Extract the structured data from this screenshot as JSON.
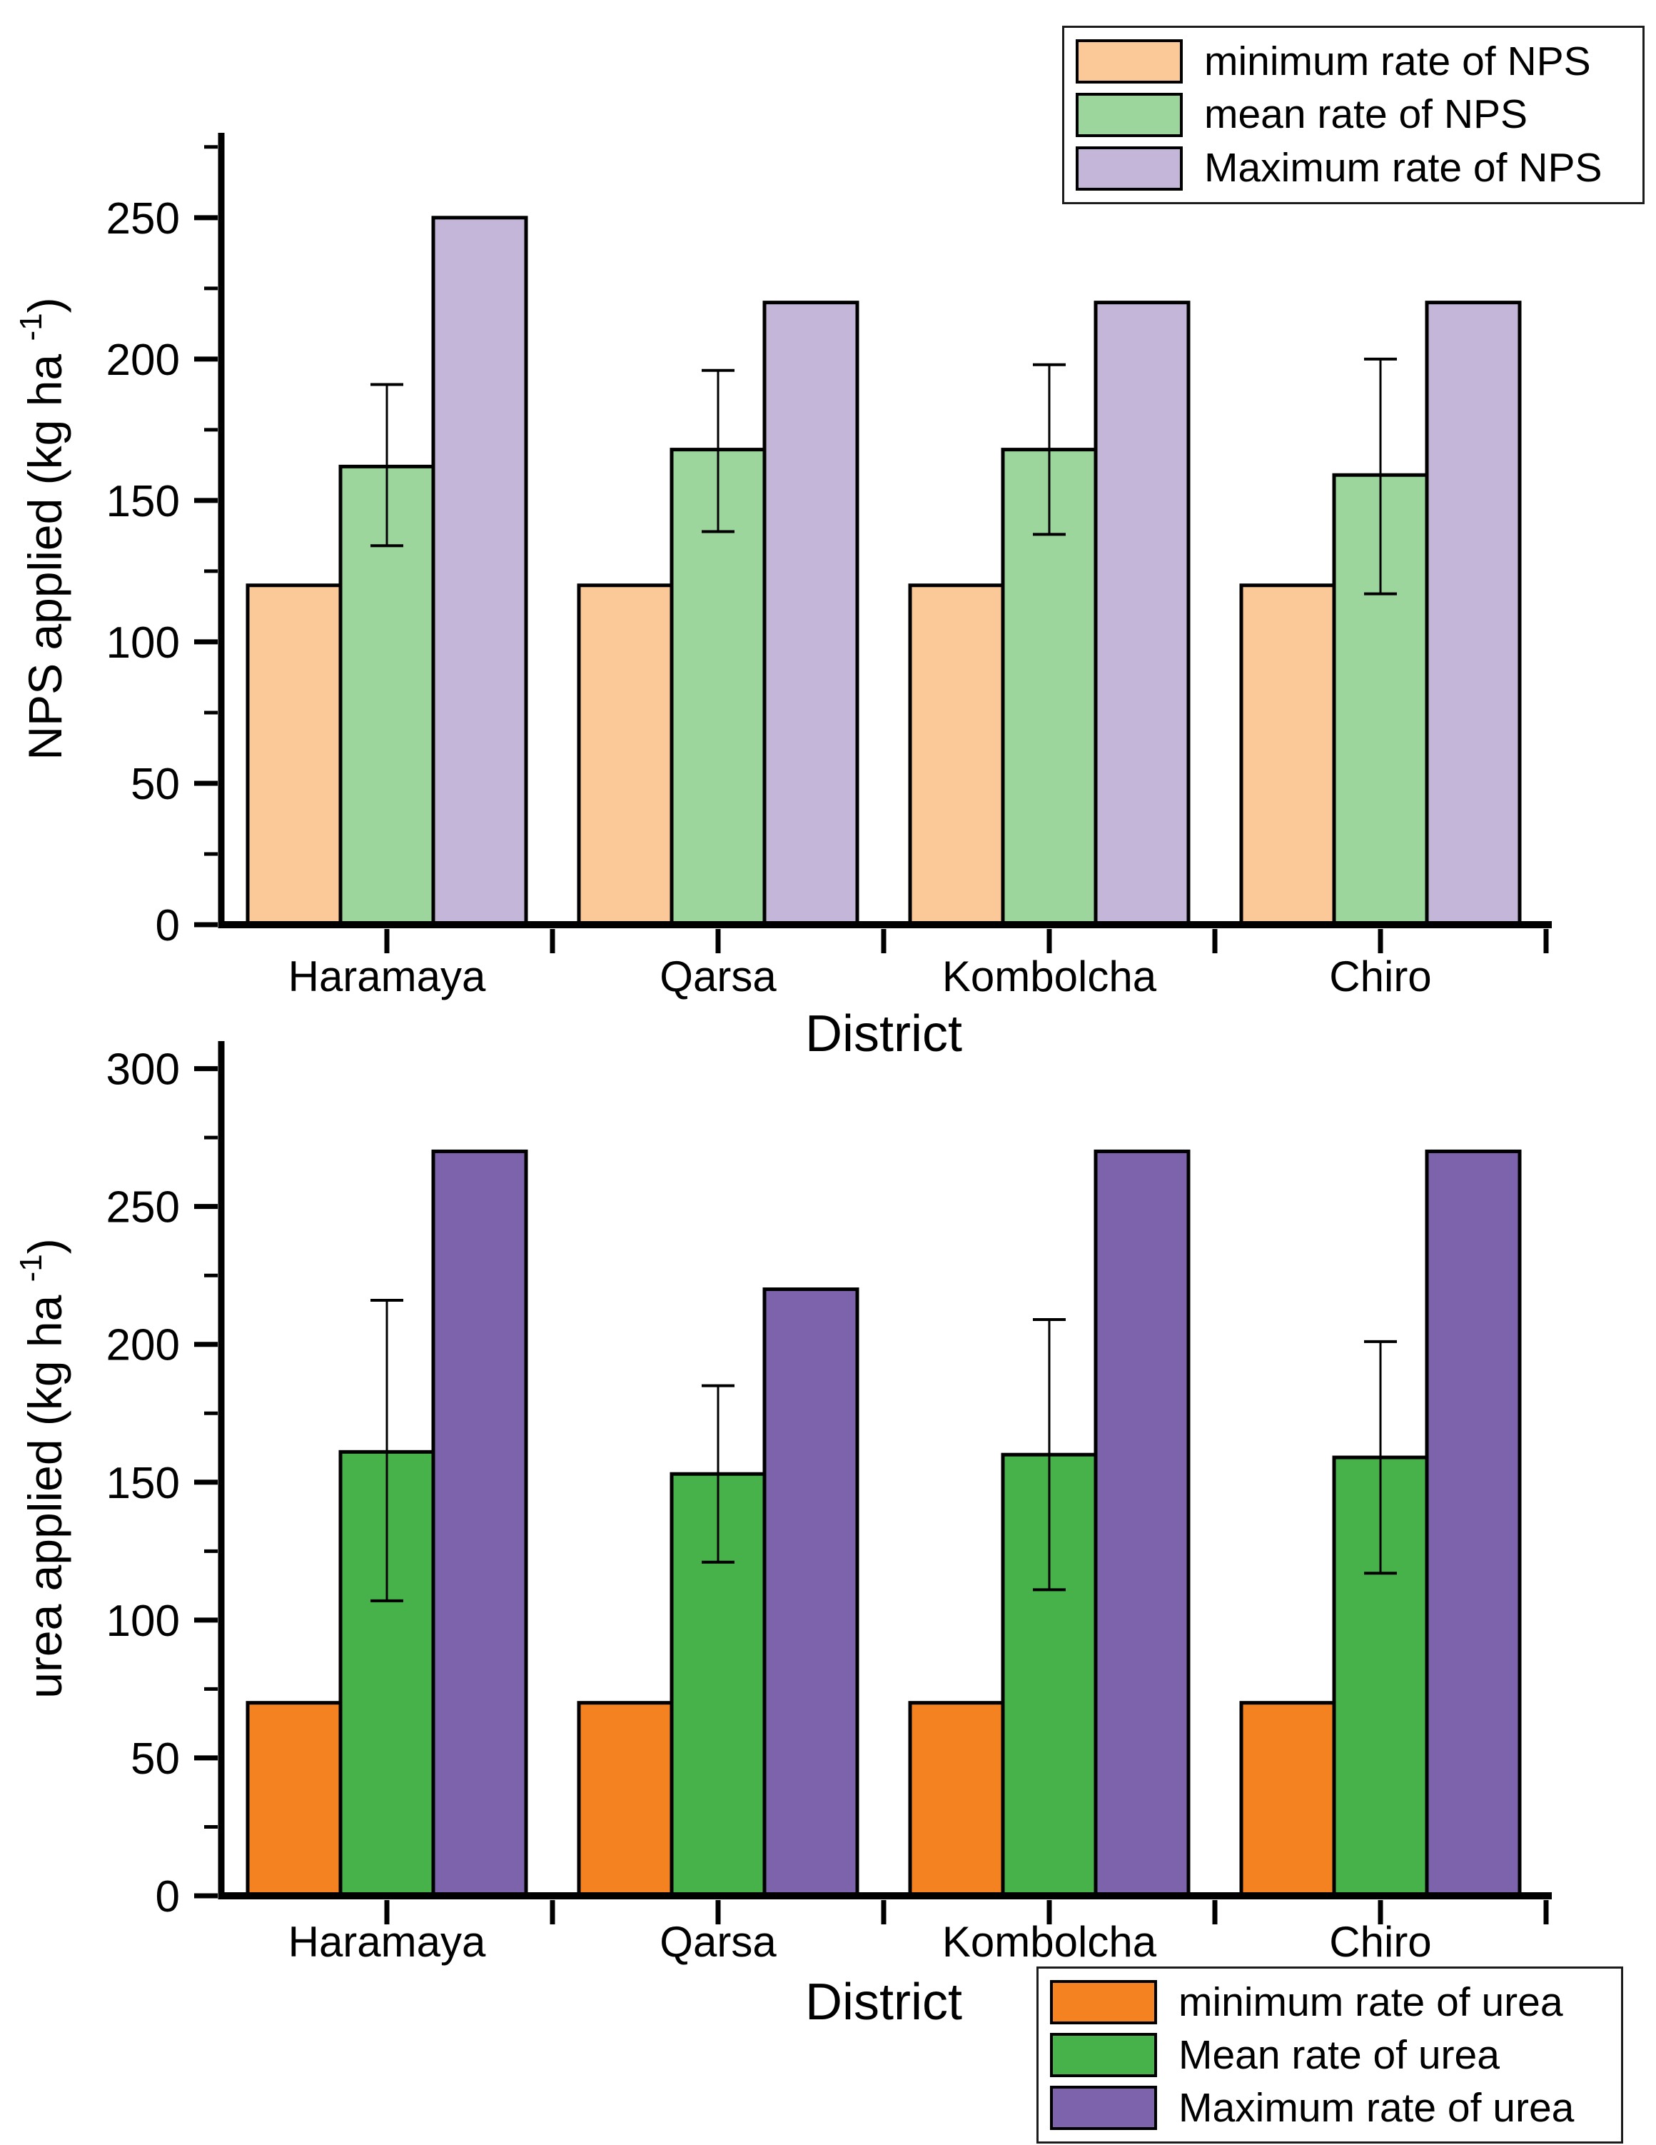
{
  "page": {
    "background": "#ffffff"
  },
  "chart_data": [
    {
      "type": "bar",
      "title": "",
      "categories": [
        "Haramaya",
        "Qarsa",
        "Kombolcha",
        "Chiro"
      ],
      "series": [
        {
          "name": "minimum rate of NPS",
          "color": "#FBC998",
          "values": [
            120,
            120,
            120,
            120
          ]
        },
        {
          "name": "mean rate of NPS",
          "color": "#9CD69C",
          "values": [
            162,
            168,
            168,
            159
          ],
          "error_low": [
            134,
            139,
            138,
            117
          ],
          "error_high": [
            191,
            196,
            198,
            200
          ]
        },
        {
          "name": "Maximum rate of NPS",
          "color": "#C4B6D8",
          "values": [
            250,
            220,
            220,
            220
          ]
        }
      ],
      "xlabel": "District",
      "ylabel": "NPS applied (kg ha -1)",
      "ylabel_parts": {
        "main": "NPS applied (kg ha ",
        "sup": "-1",
        "end": ")"
      },
      "ylim": [
        0,
        280
      ],
      "yticks": [
        0,
        50,
        100,
        150,
        200,
        250
      ],
      "minor_tick_step": 25,
      "grid": false,
      "legend_position": "top-right",
      "bar_edge_color": "#000000"
    },
    {
      "type": "bar",
      "title": "",
      "categories": [
        "Haramaya",
        "Qarsa",
        "Kombolcha",
        "Chiro"
      ],
      "series": [
        {
          "name": "minimum rate of urea",
          "color": "#F58220",
          "values": [
            70,
            70,
            70,
            70
          ]
        },
        {
          "name": "Mean rate of urea",
          "color": "#47B24A",
          "values": [
            161,
            153,
            160,
            159
          ],
          "error_low": [
            107,
            121,
            111,
            117
          ],
          "error_high": [
            216,
            185,
            209,
            201
          ]
        },
        {
          "name": "Maximum rate of urea",
          "color": "#7C63AC",
          "values": [
            270,
            220,
            270,
            270
          ]
        }
      ],
      "xlabel": "District",
      "ylabel": "urea applied (kg ha -1)",
      "ylabel_parts": {
        "main": "urea applied (kg ha ",
        "sup": "-1",
        "end": ")"
      },
      "ylim": [
        0,
        310
      ],
      "yticks": [
        0,
        50,
        100,
        150,
        200,
        250,
        300
      ],
      "minor_tick_step": 25,
      "grid": false,
      "legend_position": "bottom-right",
      "bar_edge_color": "#000000"
    }
  ]
}
